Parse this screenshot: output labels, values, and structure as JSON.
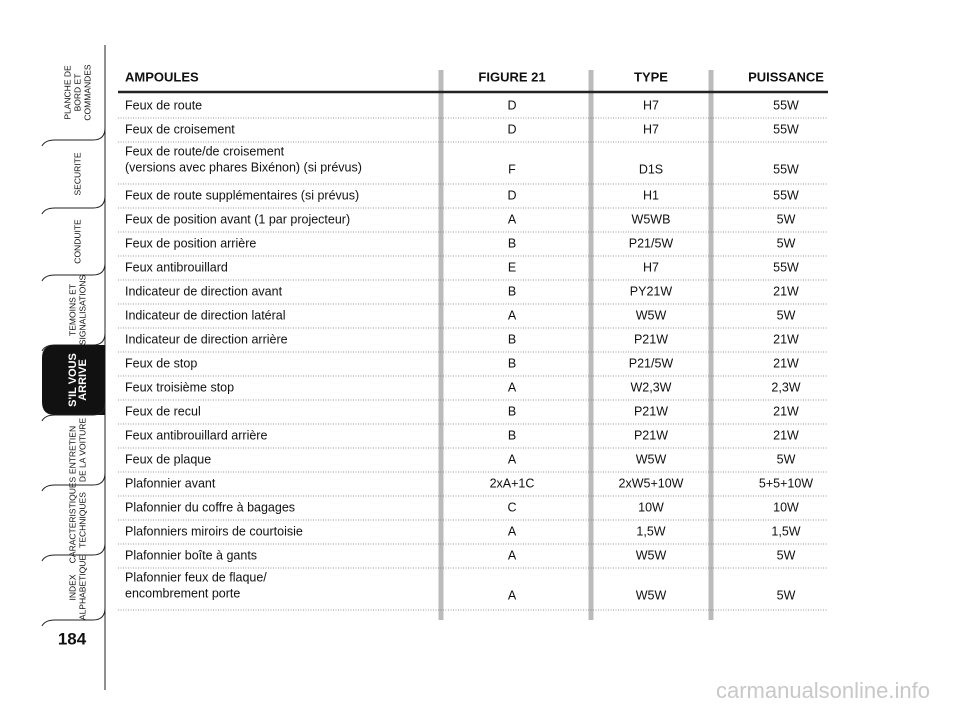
{
  "sidebar": {
    "tabs": [
      {
        "lines": [
          "PLANCHE DE",
          "BORD ET",
          "COMMANDES"
        ]
      },
      {
        "lines": [
          "SECURITE"
        ]
      },
      {
        "lines": [
          "CONDUITE"
        ]
      },
      {
        "lines": [
          "TEMOINS ET",
          "SIGNALISATIONS"
        ]
      },
      {
        "lines": [
          "S'IL VOUS",
          "ARRIVE"
        ],
        "active": true
      },
      {
        "lines": [
          "ENTRETIEN",
          "DE LA VOITURE"
        ]
      },
      {
        "lines": [
          "CARACTERISTIQUES",
          "TECHNIQUES"
        ]
      },
      {
        "lines": [
          "INDEX",
          "ALPHABETIQUE"
        ]
      }
    ],
    "page_number": "184"
  },
  "table": {
    "headers": [
      "AMPOULES",
      "FIGURE 21",
      "TYPE",
      "PUISSANCE"
    ],
    "rows": [
      {
        "label": [
          "Feux de route"
        ],
        "figure": "D",
        "type": "H7",
        "power": "55W"
      },
      {
        "label": [
          "Feux de croisement"
        ],
        "figure": "D",
        "type": "H7",
        "power": "55W"
      },
      {
        "label": [
          "Feux de route/de croisement",
          "(versions avec phares Bixénon) (si prévus)"
        ],
        "figure": "F",
        "type": "D1S",
        "power": "55W"
      },
      {
        "label": [
          "Feux de route supplémentaires (si prévus)"
        ],
        "figure": "D",
        "type": "H1",
        "power": "55W"
      },
      {
        "label": [
          "Feux de position avant (1 par projecteur)"
        ],
        "figure": "A",
        "type": "W5WB",
        "power": "5W"
      },
      {
        "label": [
          "Feux de position arrière"
        ],
        "figure": "B",
        "type": "P21/5W",
        "power": "5W"
      },
      {
        "label": [
          "Feux antibrouillard"
        ],
        "figure": "E",
        "type": "H7",
        "power": "55W"
      },
      {
        "label": [
          "Indicateur de direction avant"
        ],
        "figure": "B",
        "type": "PY21W",
        "power": "21W"
      },
      {
        "label": [
          "Indicateur de direction latéral"
        ],
        "figure": "A",
        "type": "W5W",
        "power": "5W"
      },
      {
        "label": [
          "Indicateur de direction arrière"
        ],
        "figure": "B",
        "type": "P21W",
        "power": "21W"
      },
      {
        "label": [
          "Feux de stop"
        ],
        "figure": "B",
        "type": "P21/5W",
        "power": "21W"
      },
      {
        "label": [
          "Feux troisième stop"
        ],
        "figure": "A",
        "type": "W2,3W",
        "power": "2,3W"
      },
      {
        "label": [
          "Feux de recul"
        ],
        "figure": "B",
        "type": "P21W",
        "power": "21W"
      },
      {
        "label": [
          "Feux antibrouillard arrière"
        ],
        "figure": "B",
        "type": "P21W",
        "power": "21W"
      },
      {
        "label": [
          "Feux de plaque"
        ],
        "figure": "A",
        "type": "W5W",
        "power": "5W"
      },
      {
        "label": [
          "Plafonnier avant"
        ],
        "figure": "2xA+1C",
        "type": "2xW5+10W",
        "power": "5+5+10W"
      },
      {
        "label": [
          "Plafonnier du coffre à bagages"
        ],
        "figure": "C",
        "type": "10W",
        "power": "10W"
      },
      {
        "label": [
          "Plafonniers miroirs de courtoisie"
        ],
        "figure": "A",
        "type": "1,5W",
        "power": "1,5W"
      },
      {
        "label": [
          "Plafonnier boîte à gants"
        ],
        "figure": "A",
        "type": "W5W",
        "power": "5W"
      },
      {
        "label": [
          "Plafonnier feux de flaque/",
          "encombrement porte"
        ],
        "figure": "A",
        "type": "W5W",
        "power": "5W"
      }
    ]
  },
  "watermark": "carmanualsonline.info"
}
